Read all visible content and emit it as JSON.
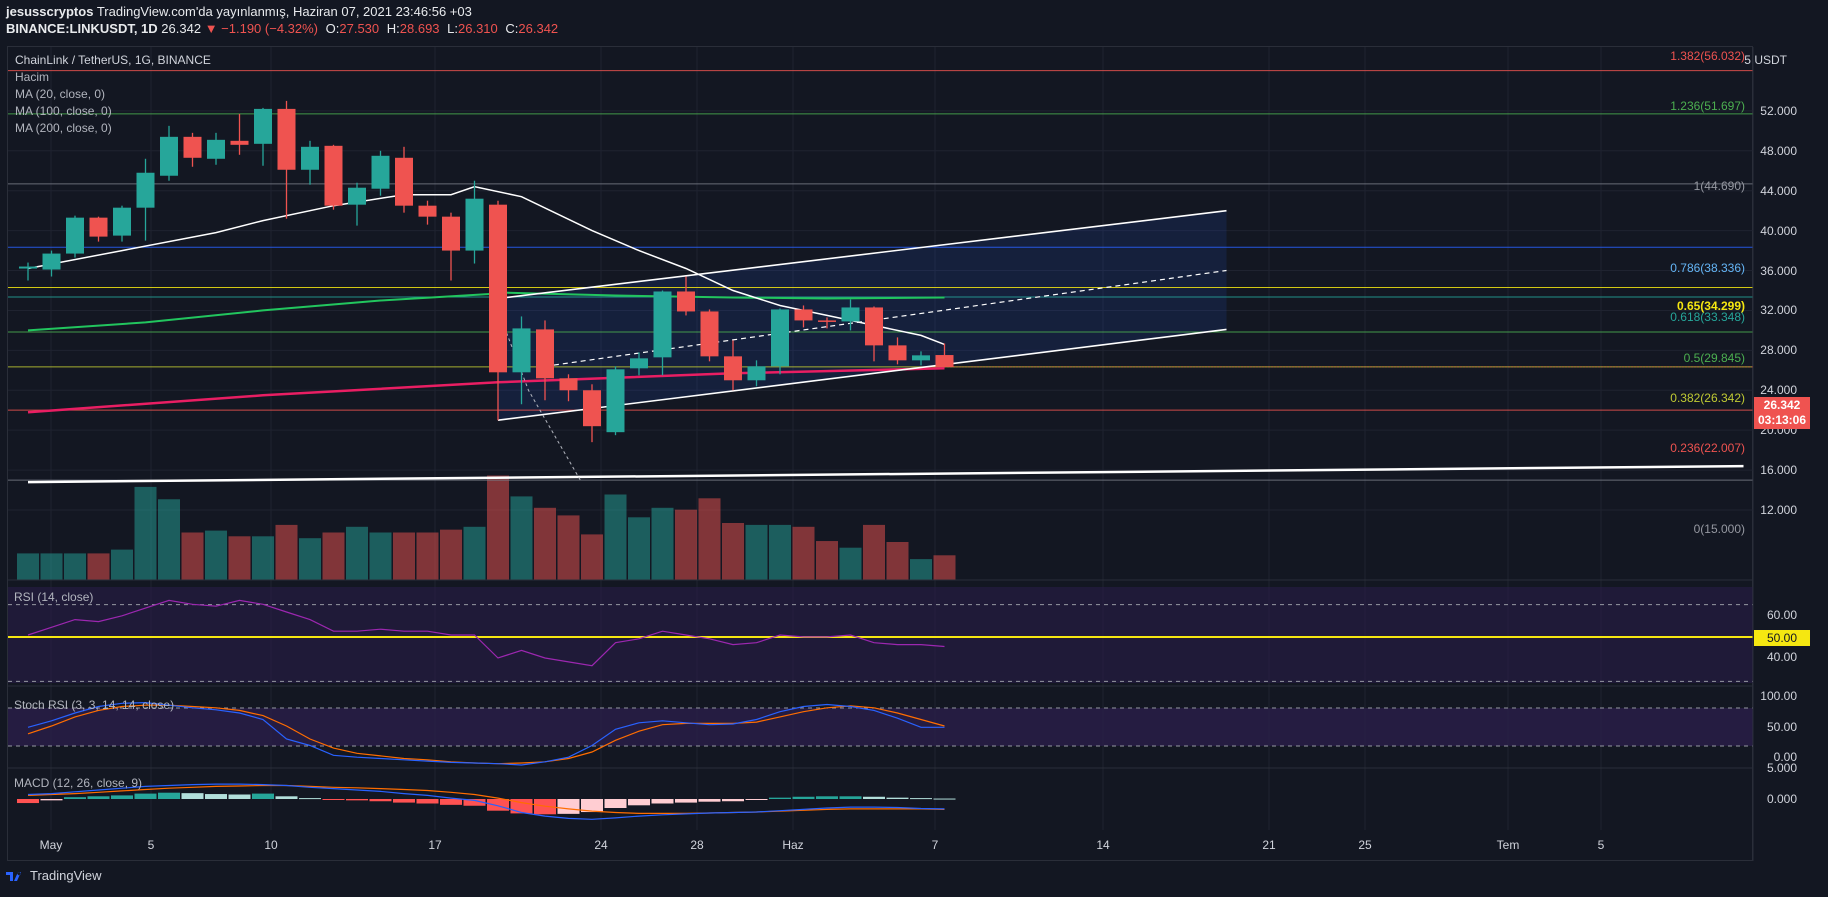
{
  "header": {
    "user": "jesusscryptos",
    "published": "TradingView.com'da yayınlanmış, Haziran 07, 2021 23:46:56 +03",
    "symbol": "BINANCE:LINKUSDT, 1D",
    "last": "26.342",
    "change": "▼ −1.190 (−4.32%)",
    "open_label": "O:",
    "open": "27.530",
    "high_label": "H:",
    "high": "28.693",
    "low_label": "L:",
    "low": "26.310",
    "close_label": "C:",
    "close": "26.342"
  },
  "legend": {
    "main": "ChainLink / TetherUS, 1G, BINANCE",
    "volume": "Hacim",
    "ma20": "MA (20, close, 0)",
    "ma100": "MA (100, close, 0)",
    "ma200": "MA (200, close, 0)"
  },
  "panes": {
    "rsi": "RSI (14, close)",
    "stoch": "Stoch RSI (3, 3, 14, 14, close)",
    "macd": "MACD (12, 26, close, 9)"
  },
  "unit": "USDT",
  "unit_prefix": "5",
  "price_axis": [
    "52.000",
    "48.000",
    "44.000",
    "40.000",
    "36.000",
    "32.000",
    "28.000",
    "24.000",
    "20.000",
    "16.000",
    "12.000"
  ],
  "rsi_axis": [
    "60.00",
    "40.00"
  ],
  "stoch_axis": [
    "100.00",
    "50.00",
    "0.00"
  ],
  "macd_axis": [
    "5.000",
    "0.000"
  ],
  "x_axis": [
    "May",
    "5",
    "10",
    "17",
    "24",
    "28",
    "Haz",
    "7",
    "14",
    "21",
    "25",
    "Tem",
    "5"
  ],
  "fib_levels": [
    {
      "text": "1.382(56.032)",
      "color": "#ef5350"
    },
    {
      "text": "1.236(51.697)",
      "color": "#4caf50"
    },
    {
      "text": "1(44.690)",
      "color": "#9598a1"
    },
    {
      "text": "0.786(38.336)",
      "color": "#64b5f6"
    },
    {
      "text": "0.65(34.299)",
      "color": "#f5e711"
    },
    {
      "text": "0.618(33.348)",
      "color": "#26a69a"
    },
    {
      "text": "0.5(29.845)",
      "color": "#4caf50"
    },
    {
      "text": "0.382(26.342)",
      "color": "#c0ca33"
    },
    {
      "text": "0.236(22.007)",
      "color": "#ef5350"
    },
    {
      "text": "0(15.000)",
      "color": "#9598a1"
    }
  ],
  "price_badge": {
    "price": "26.342",
    "countdown": "03:13:06"
  },
  "rsi_badge": "50.00",
  "footer": {
    "brand": "TradingView"
  },
  "chart_data": {
    "type": "candlestick",
    "timeframe": "1D",
    "candles": [
      {
        "o": 36.2,
        "h": 36.8,
        "l": 35.0,
        "c": 36.4
      },
      {
        "o": 36.1,
        "h": 38.0,
        "l": 35.4,
        "c": 37.7
      },
      {
        "o": 37.7,
        "h": 41.5,
        "l": 37.3,
        "c": 41.3
      },
      {
        "o": 41.3,
        "h": 41.4,
        "l": 38.9,
        "c": 39.4
      },
      {
        "o": 39.5,
        "h": 42.5,
        "l": 38.9,
        "c": 42.3
      },
      {
        "o": 42.3,
        "h": 47.2,
        "l": 39.0,
        "c": 45.8
      },
      {
        "o": 45.5,
        "h": 50.5,
        "l": 45.0,
        "c": 49.4
      },
      {
        "o": 49.4,
        "h": 49.8,
        "l": 46.4,
        "c": 47.3
      },
      {
        "o": 47.2,
        "h": 49.8,
        "l": 46.6,
        "c": 49.1
      },
      {
        "o": 49.0,
        "h": 51.7,
        "l": 47.6,
        "c": 48.6
      },
      {
        "o": 48.7,
        "h": 52.3,
        "l": 46.5,
        "c": 52.2
      },
      {
        "o": 52.2,
        "h": 53.0,
        "l": 41.2,
        "c": 46.1
      },
      {
        "o": 46.1,
        "h": 49.0,
        "l": 44.6,
        "c": 48.4
      },
      {
        "o": 48.5,
        "h": 48.6,
        "l": 42.1,
        "c": 42.5
      },
      {
        "o": 42.6,
        "h": 44.8,
        "l": 40.5,
        "c": 44.3
      },
      {
        "o": 44.2,
        "h": 48.0,
        "l": 43.5,
        "c": 47.5
      },
      {
        "o": 47.3,
        "h": 48.4,
        "l": 41.8,
        "c": 42.5
      },
      {
        "o": 42.5,
        "h": 43.0,
        "l": 40.6,
        "c": 41.4
      },
      {
        "o": 41.4,
        "h": 41.8,
        "l": 35.0,
        "c": 38.0
      },
      {
        "o": 38.0,
        "h": 45.0,
        "l": 36.7,
        "c": 43.2
      },
      {
        "o": 42.6,
        "h": 43.0,
        "l": 21.0,
        "c": 25.8
      },
      {
        "o": 25.8,
        "h": 31.4,
        "l": 22.6,
        "c": 30.2
      },
      {
        "o": 30.1,
        "h": 31.0,
        "l": 23.0,
        "c": 25.2
      },
      {
        "o": 25.2,
        "h": 25.6,
        "l": 22.9,
        "c": 24.0
      },
      {
        "o": 24.0,
        "h": 24.6,
        "l": 18.8,
        "c": 20.4
      },
      {
        "o": 19.8,
        "h": 26.4,
        "l": 19.5,
        "c": 26.1
      },
      {
        "o": 26.2,
        "h": 27.8,
        "l": 25.5,
        "c": 27.2
      },
      {
        "o": 27.3,
        "h": 34.0,
        "l": 25.5,
        "c": 33.9
      },
      {
        "o": 33.9,
        "h": 35.4,
        "l": 31.5,
        "c": 31.9
      },
      {
        "o": 31.9,
        "h": 32.1,
        "l": 26.9,
        "c": 27.4
      },
      {
        "o": 27.4,
        "h": 29.0,
        "l": 24.0,
        "c": 25.0
      },
      {
        "o": 25.0,
        "h": 27.0,
        "l": 24.4,
        "c": 26.4
      },
      {
        "o": 26.4,
        "h": 32.2,
        "l": 25.6,
        "c": 32.1
      },
      {
        "o": 32.1,
        "h": 32.5,
        "l": 30.3,
        "c": 31.0
      },
      {
        "o": 31.0,
        "h": 31.3,
        "l": 30.2,
        "c": 30.9
      },
      {
        "o": 30.9,
        "h": 33.1,
        "l": 30.0,
        "c": 32.3
      },
      {
        "o": 32.3,
        "h": 32.4,
        "l": 26.9,
        "c": 28.5
      },
      {
        "o": 28.5,
        "h": 29.3,
        "l": 26.6,
        "c": 27.0
      },
      {
        "o": 27.0,
        "h": 27.9,
        "l": 26.5,
        "c": 27.5
      },
      {
        "o": 27.53,
        "h": 28.69,
        "l": 26.31,
        "c": 26.34
      }
    ],
    "volume_relative": [
      0.28,
      0.28,
      0.28,
      0.28,
      0.32,
      0.98,
      0.85,
      0.5,
      0.52,
      0.46,
      0.46,
      0.58,
      0.44,
      0.5,
      0.56,
      0.5,
      0.5,
      0.5,
      0.53,
      0.56,
      1.1,
      0.88,
      0.76,
      0.68,
      0.48,
      0.9,
      0.66,
      0.76,
      0.74,
      0.86,
      0.6,
      0.58,
      0.58,
      0.56,
      0.41,
      0.34,
      0.58,
      0.4,
      0.22,
      0.26
    ],
    "ma20": [
      [
        0,
        36.2
      ],
      [
        4,
        38.0
      ],
      [
        8,
        39.8
      ],
      [
        10,
        41.0
      ],
      [
        13,
        42.5
      ],
      [
        16,
        43.6
      ],
      [
        18,
        43.6
      ],
      [
        19,
        44.4
      ],
      [
        21,
        43.4
      ],
      [
        24,
        40.0
      ],
      [
        26,
        38.0
      ],
      [
        28,
        36.2
      ],
      [
        30,
        34.0
      ],
      [
        32,
        32.5
      ],
      [
        34,
        31.5
      ],
      [
        36,
        30.5
      ],
      [
        38,
        29.5
      ],
      [
        39,
        28.6
      ]
    ],
    "ma100": [
      [
        20,
        33.8
      ],
      [
        25,
        33.5
      ],
      [
        30,
        33.3
      ],
      [
        34,
        33.2
      ],
      [
        39,
        33.3
      ]
    ],
    "ma100_early": [
      [
        0,
        30.0
      ],
      [
        5,
        30.8
      ],
      [
        10,
        32.0
      ],
      [
        15,
        33.0
      ],
      [
        20,
        33.7
      ]
    ],
    "ma200": [
      [
        0,
        21.8
      ],
      [
        10,
        23.5
      ],
      [
        20,
        24.8
      ],
      [
        30,
        25.7
      ],
      [
        39,
        26.2
      ]
    ],
    "long_trendline": [
      [
        0,
        14.8
      ],
      [
        73,
        16.4
      ]
    ],
    "fib_values": [
      56.032,
      51.697,
      44.69,
      38.336,
      34.299,
      33.348,
      29.845,
      26.342,
      22.007,
      15.0
    ],
    "fib_colors": [
      "#ef5350",
      "#4caf50",
      "#787b86",
      "#2962ff",
      "#f5e711",
      "#26a69a",
      "#4caf50",
      "#c0ca33",
      "#ef5350",
      "#787b86"
    ],
    "channel": {
      "upper": [
        [
          20,
          33.2
        ],
        [
          51,
          42.0
        ]
      ],
      "mid": [
        [
          22,
          26.4
        ],
        [
          51,
          36.0
        ]
      ],
      "lower": [
        [
          20,
          21.0
        ],
        [
          51,
          30.1
        ]
      ]
    },
    "price_ylim": [
      12,
      57
    ],
    "rsi": [
      50,
      54,
      58,
      57,
      60,
      64,
      68,
      66,
      65,
      68,
      66,
      62,
      58,
      52,
      52,
      53,
      52,
      52,
      50,
      50,
      38,
      42,
      38,
      36,
      34,
      46,
      48,
      52,
      50,
      48,
      45,
      46,
      50,
      49,
      49,
      50,
      46,
      45,
      45,
      44
    ],
    "stoch_k": [
      58,
      68,
      80,
      90,
      95,
      96,
      92,
      88,
      85,
      80,
      70,
      40,
      30,
      15,
      12,
      10,
      8,
      6,
      4,
      3,
      2,
      0,
      5,
      12,
      30,
      55,
      65,
      68,
      65,
      62,
      63,
      70,
      82,
      90,
      93,
      90,
      84,
      72,
      58,
      58
    ],
    "stoch_d": [
      48,
      60,
      74,
      84,
      90,
      92,
      92,
      90,
      88,
      84,
      76,
      60,
      40,
      26,
      18,
      14,
      10,
      8,
      5,
      3,
      2,
      3,
      5,
      10,
      20,
      38,
      52,
      62,
      64,
      64,
      64,
      66,
      74,
      82,
      88,
      91,
      88,
      80,
      70,
      60
    ],
    "macd_hist": [
      -0.9,
      -0.3,
      0.4,
      0.6,
      0.8,
      1.2,
      1.4,
      1.3,
      1.1,
      1.0,
      1.2,
      0.6,
      0.2,
      -0.1,
      -0.3,
      -0.5,
      -0.8,
      -1.0,
      -1.3,
      -1.5,
      -2.6,
      -3.2,
      -3.4,
      -3.3,
      -2.9,
      -2.0,
      -1.4,
      -1.0,
      -0.8,
      -0.6,
      -0.5,
      -0.2,
      0.3,
      0.5,
      0.6,
      0.6,
      0.5,
      0.3,
      0.2,
      0.1
    ],
    "macd_line": [
      1.0,
      1.2,
      1.6,
      2.0,
      2.4,
      2.8,
      3.0,
      3.2,
      3.3,
      3.3,
      3.2,
      3.0,
      2.6,
      2.3,
      2.0,
      1.7,
      1.2,
      0.8,
      0.2,
      -0.3,
      -1.5,
      -3.0,
      -3.8,
      -4.3,
      -4.5,
      -4.2,
      -3.8,
      -3.5,
      -3.3,
      -3.1,
      -3.0,
      -2.9,
      -2.6,
      -2.3,
      -2.0,
      -1.8,
      -1.8,
      -1.9,
      -2.1,
      -2.2
    ],
    "macd_signal": [
      0.8,
      1.0,
      1.2,
      1.5,
      1.8,
      2.1,
      2.4,
      2.6,
      2.8,
      2.9,
      3.0,
      3.0,
      2.8,
      2.6,
      2.5,
      2.3,
      2.1,
      1.9,
      1.5,
      1.0,
      0.2,
      -0.8,
      -1.6,
      -2.2,
      -2.7,
      -3.0,
      -3.2,
      -3.2,
      -3.2,
      -3.1,
      -3.0,
      -2.9,
      -2.7,
      -2.5,
      -2.3,
      -2.2,
      -2.2,
      -2.2,
      -2.2,
      -2.3
    ],
    "colors": {
      "up": "#26a69a",
      "down": "#ef5350",
      "ma20": "#ffffff",
      "ma100": "#22c55e",
      "ma200": "#e91e63",
      "rsi": "#9c27b0",
      "stoch_k": "#2962ff",
      "stoch_d": "#ff6d00"
    }
  }
}
